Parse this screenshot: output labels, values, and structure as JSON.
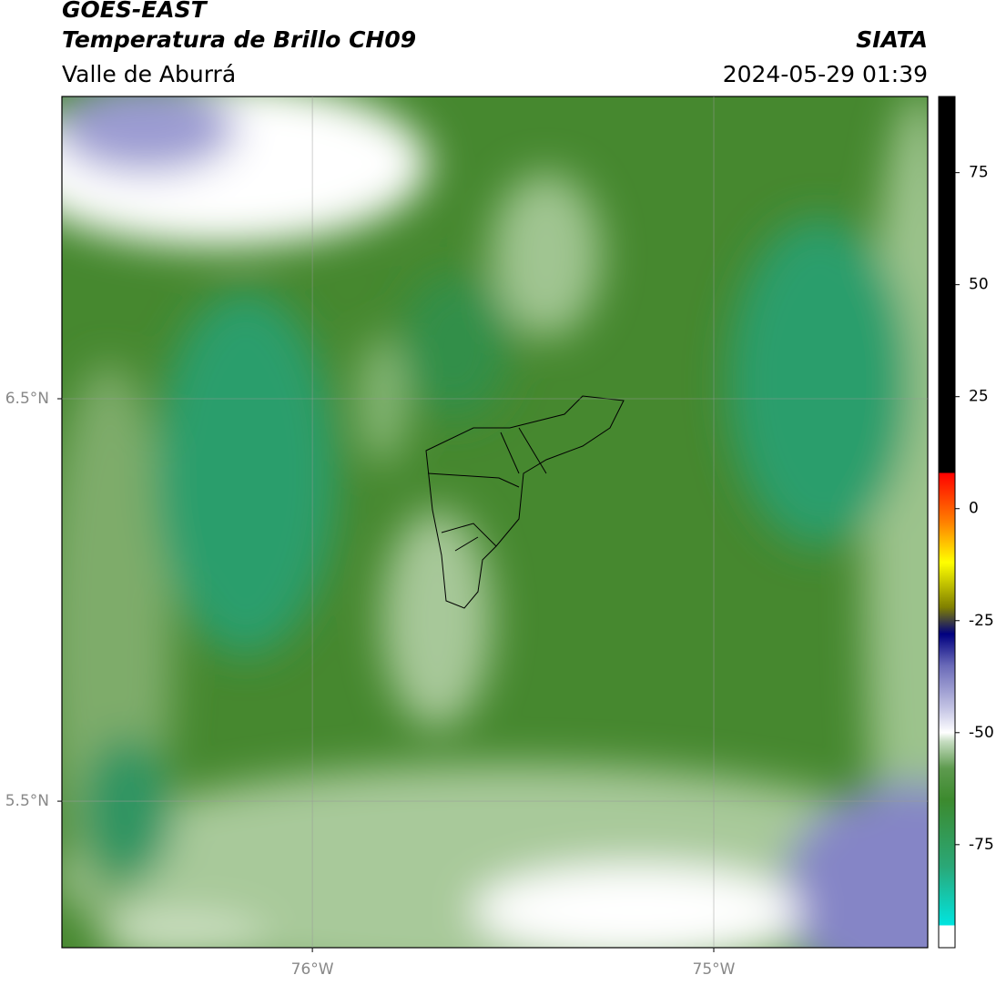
{
  "header": {
    "title": "GOES-EAST",
    "subtitle": "Temperatura de Brillo CH09",
    "region": "Valle de Aburrá",
    "source": "SIATA",
    "timestamp": "2024-05-29 01:39"
  },
  "map": {
    "lon_range": [
      -76.624,
      -74.467
    ],
    "lat_range": [
      5.136,
      7.251
    ],
    "lon_ticks": [
      {
        "value": -76,
        "label": "76°W"
      },
      {
        "value": -75,
        "label": "75°W"
      }
    ],
    "lat_ticks": [
      {
        "value": 6.5,
        "label": "6.5°N"
      },
      {
        "value": 5.5,
        "label": "5.5°N"
      }
    ]
  },
  "colorbar": {
    "range": [
      -98,
      92
    ],
    "ticks": [
      75,
      50,
      25,
      0,
      -25,
      -50,
      -75
    ],
    "stops": [
      [
        -98,
        "#ffffff"
      ],
      [
        -93,
        "#ffffff"
      ],
      [
        -93,
        "#00e5e0"
      ],
      [
        -80,
        "#2aa878"
      ],
      [
        -65,
        "#3c8a2e"
      ],
      [
        -58,
        "#5d9a4e"
      ],
      [
        -52,
        "#c5dcc0"
      ],
      [
        -50,
        "#ffffff"
      ],
      [
        -45,
        "#c8c8e6"
      ],
      [
        -35,
        "#6a6ab8"
      ],
      [
        -28,
        "#000080"
      ],
      [
        -22,
        "#808000"
      ],
      [
        -12,
        "#ffff00"
      ],
      [
        -3,
        "#ff8000"
      ],
      [
        8,
        "#ff0000"
      ],
      [
        8,
        "#000000"
      ],
      [
        92,
        "#000000"
      ]
    ]
  }
}
